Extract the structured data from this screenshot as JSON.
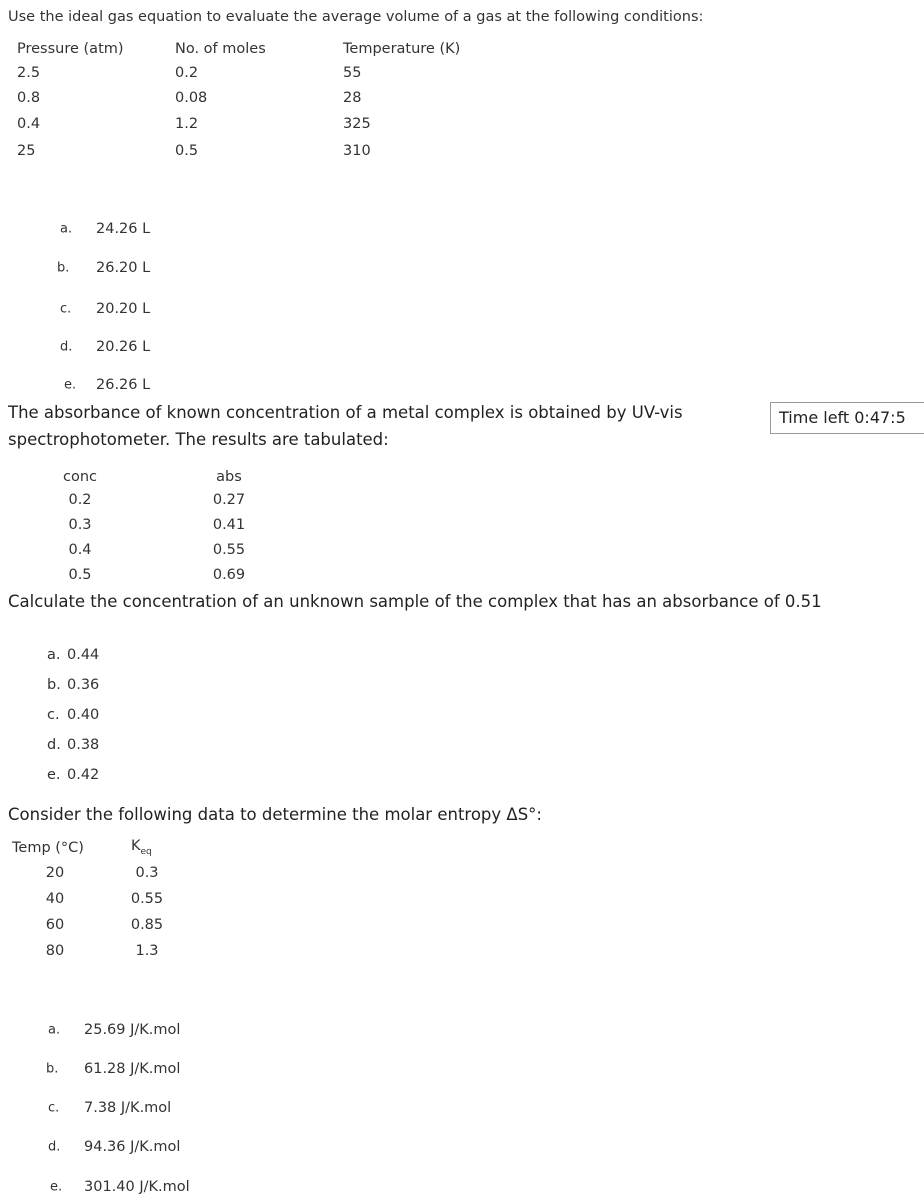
{
  "questions": [
    {
      "prompt": "Use the ideal gas equation to evaluate the average volume of a gas at the following conditions:",
      "table": {
        "headers": [
          "Pressure (atm)",
          "No. of moles",
          "Temperature (K)"
        ],
        "rows": [
          [
            "2.5",
            "0.2",
            "55"
          ],
          [
            "0.8",
            "0.08",
            "28"
          ],
          [
            "0.4",
            "1.2",
            "325"
          ],
          [
            "25",
            "0.5",
            "310"
          ]
        ]
      },
      "options": [
        {
          "letter": "a.",
          "text": "24.26 L"
        },
        {
          "letter": "b.",
          "text": "26.20 L"
        },
        {
          "letter": "c.",
          "text": "20.20 L"
        },
        {
          "letter": "d.",
          "text": "20.26 L"
        },
        {
          "letter": "e.",
          "text": "26.26 L"
        }
      ]
    },
    {
      "prompt_lines": [
        "The absorbance of known concentration of a metal complex is obtained by UV-vis",
        "spectrophotometer. The results are tabulated:"
      ],
      "table": {
        "headers": [
          "conc",
          "abs"
        ],
        "rows": [
          [
            "0.2",
            "0.27"
          ],
          [
            "0.3",
            "0.41"
          ],
          [
            "0.4",
            "0.55"
          ],
          [
            "0.5",
            "0.69"
          ]
        ]
      },
      "question": "Calculate the concentration of an unknown sample of the complex that has an absorbance of 0.51",
      "options": [
        {
          "letter": "a.",
          "text": "0.44"
        },
        {
          "letter": "b.",
          "text": "0.36"
        },
        {
          "letter": "c.",
          "text": "0.40"
        },
        {
          "letter": "d.",
          "text": "0.38"
        },
        {
          "letter": "e.",
          "text": "0.42"
        }
      ]
    },
    {
      "prompt": "Consider the following data to determine the molar entropy ΔS°:",
      "table": {
        "headers": [
          "Temp (°C)",
          {
            "symbol": "K",
            "subscript": "eq"
          }
        ],
        "rows": [
          [
            "20",
            "0.3"
          ],
          [
            "40",
            "0.55"
          ],
          [
            "60",
            "0.85"
          ],
          [
            "80",
            "1.3"
          ]
        ]
      },
      "options": [
        {
          "letter": "a.",
          "text": "25.69 J/K.mol"
        },
        {
          "letter": "b.",
          "text": "61.28 J/K.mol"
        },
        {
          "letter": "c.",
          "text": "7.38 J/K.mol"
        },
        {
          "letter": "d.",
          "text": "94.36 J/K.mol"
        },
        {
          "letter": "e.",
          "text": "301.40 J/K.mol"
        }
      ]
    }
  ],
  "timer": "Time left 0:47:5"
}
